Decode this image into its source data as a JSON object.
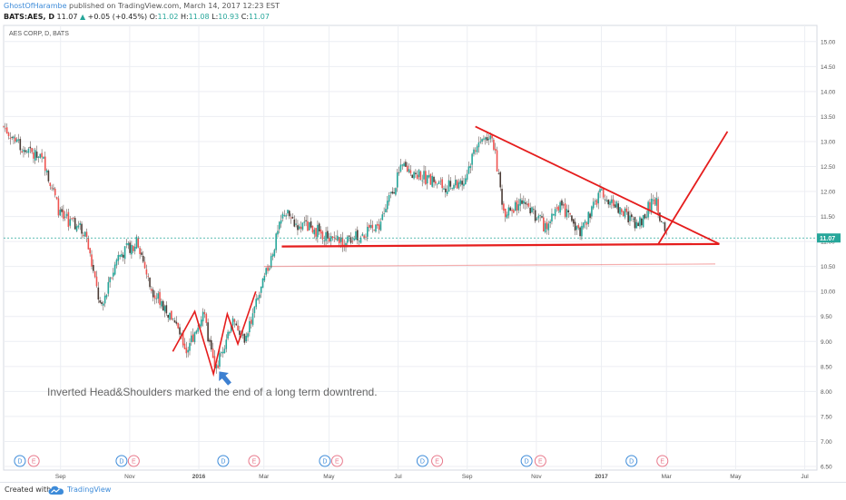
{
  "header": {
    "username": "GhostOfHarambe",
    "published": "published on TradingView.com, March 14, 2017 12:23 EST",
    "symbol": "BATS:AES, D",
    "price": "11.07",
    "change": "+0.05 (+0.45%)",
    "open_label": "O:",
    "open": "11.02",
    "high_label": "H:",
    "high": "11.08",
    "low_label": "L:",
    "low": "10.93",
    "close_label": "C:",
    "close": "11.07"
  },
  "chart_label": "AES CORP, D, BATS",
  "annotation": "Inverted Head&Shoulders marked the end of a long term downtrend.",
  "last_price_label": "11.07",
  "footer": {
    "created": "Created with",
    "brand": "TradingView"
  },
  "colors": {
    "up": "#26a69a",
    "down": "#ef5350",
    "candle": "#4a3b35",
    "trendline": "#e51d1d",
    "arrow": "#3d80d1",
    "lastprice": "#26a69a",
    "earnings": "#e8788b",
    "dividend": "#3d8bd9"
  },
  "chart_data": {
    "type": "candlestick",
    "title": "AES CORP, D, BATS",
    "ylim": [
      6.5,
      15.25
    ],
    "y_ticks": [
      "15.00",
      "14.50",
      "14.00",
      "13.50",
      "13.00",
      "12.50",
      "12.00",
      "11.50",
      "11.00",
      "10.50",
      "10.00",
      "9.50",
      "9.00",
      "8.50",
      "8.00",
      "7.50",
      "7.00",
      "6.50"
    ],
    "x_ticks": [
      "Sep",
      "Nov",
      "2016",
      "Mar",
      "May",
      "Jul",
      "Sep",
      "Nov",
      "2017",
      "Mar",
      "May",
      "Jul"
    ],
    "price_path": [
      [
        0,
        13.3
      ],
      [
        0.02,
        12.9
      ],
      [
        0.05,
        12.6
      ],
      [
        0.07,
        11.5
      ],
      [
        0.1,
        11.2
      ],
      [
        0.12,
        9.6
      ],
      [
        0.14,
        10.7
      ],
      [
        0.165,
        11.0
      ],
      [
        0.18,
        10.1
      ],
      [
        0.21,
        9.4
      ],
      [
        0.225,
        8.8
      ],
      [
        0.245,
        9.6
      ],
      [
        0.26,
        8.4
      ],
      [
        0.28,
        9.4
      ],
      [
        0.295,
        9.0
      ],
      [
        0.32,
        10.2
      ],
      [
        0.345,
        11.6
      ],
      [
        0.36,
        11.35
      ],
      [
        0.38,
        11.25
      ],
      [
        0.415,
        11.0
      ],
      [
        0.46,
        11.25
      ],
      [
        0.49,
        12.5
      ],
      [
        0.54,
        12.1
      ],
      [
        0.565,
        12.15
      ],
      [
        0.58,
        12.9
      ],
      [
        0.6,
        13.2
      ],
      [
        0.615,
        11.6
      ],
      [
        0.64,
        11.8
      ],
      [
        0.665,
        11.3
      ],
      [
        0.685,
        11.7
      ],
      [
        0.71,
        11.2
      ],
      [
        0.735,
        12.0
      ],
      [
        0.76,
        11.6
      ],
      [
        0.78,
        11.3
      ],
      [
        0.8,
        11.9
      ],
      [
        0.815,
        11.07
      ]
    ],
    "dividend_markers": [
      "Sep",
      "Nov",
      "2016",
      "May",
      "Jul",
      "Nov",
      "2017"
    ],
    "earnings_markers": [
      "Sep",
      "Nov",
      "Mar",
      "May",
      "Jul",
      "Nov",
      "Mar"
    ],
    "drawings": {
      "head_and_shoulders": [
        [
          0.208,
          8.8
        ],
        [
          0.235,
          9.6
        ],
        [
          0.258,
          8.35
        ],
        [
          0.275,
          9.55
        ],
        [
          0.288,
          8.95
        ],
        [
          0.31,
          10.0
        ]
      ],
      "triangle_upper": [
        [
          0.58,
          13.3
        ],
        [
          0.88,
          10.95
        ]
      ],
      "support": [
        [
          0.342,
          10.9
        ],
        [
          0.88,
          10.95
        ]
      ],
      "faint_support": [
        [
          0.32,
          10.5
        ],
        [
          0.875,
          10.55
        ]
      ],
      "breakout": [
        [
          0.805,
          10.95
        ],
        [
          0.89,
          13.2
        ]
      ],
      "arrow_target": [
        0.265,
        8.4
      ]
    },
    "last_price": 11.07
  }
}
